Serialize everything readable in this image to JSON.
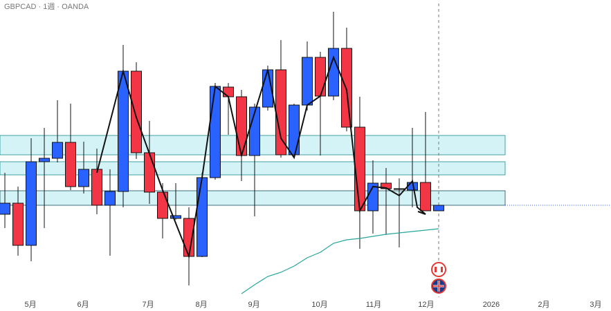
{
  "chart_data": {
    "type": "candlestick",
    "title": "GBPCAD · 1週 · OANDA",
    "up_color": "#2962ff",
    "down_color": "#f23645",
    "candles": [
      [
        140,
        200,
        120,
        156
      ],
      [
        156,
        180,
        80,
        95
      ],
      [
        95,
        250,
        72,
        216
      ],
      [
        216,
        265,
        120,
        221
      ],
      [
        221,
        305,
        215,
        244
      ],
      [
        244,
        300,
        175,
        180
      ],
      [
        180,
        245,
        170,
        205
      ],
      [
        205,
        235,
        140,
        153
      ],
      [
        153,
        205,
        80,
        173
      ],
      [
        173,
        385,
        150,
        347
      ],
      [
        347,
        360,
        220,
        229
      ],
      [
        229,
        275,
        155,
        172
      ],
      [
        172,
        185,
        105,
        134
      ],
      [
        134,
        185,
        132,
        138
      ],
      [
        134,
        150,
        37,
        79
      ],
      [
        79,
        200,
        78,
        193
      ],
      [
        193,
        330,
        190,
        325
      ],
      [
        324,
        330,
        255,
        310
      ],
      [
        310,
        320,
        188,
        225
      ],
      [
        225,
        300,
        137,
        295
      ],
      [
        295,
        355,
        290,
        349
      ],
      [
        349,
        392,
        222,
        226
      ],
      [
        226,
        300,
        222,
        298
      ],
      [
        298,
        390,
        290,
        367
      ],
      [
        367,
        375,
        225,
        311
      ],
      [
        311,
        433,
        305,
        380
      ],
      [
        380,
        410,
        260,
        266
      ],
      [
        266,
        310,
        90,
        145
      ],
      [
        145,
        218,
        112,
        185
      ],
      [
        185,
        207,
        110,
        177
      ],
      [
        177,
        192,
        92,
        176
      ],
      [
        175,
        265,
        150,
        186
      ],
      [
        186,
        288,
        145,
        145
      ],
      [
        145,
        153,
        145,
        153
      ]
    ],
    "moving_average": {
      "color": "#26a69a",
      "values": [
        null,
        null,
        null,
        null,
        null,
        null,
        null,
        null,
        null,
        null,
        null,
        null,
        null,
        null,
        null,
        null,
        null,
        null,
        25,
        38,
        50,
        56,
        65,
        77,
        85,
        98,
        103,
        105,
        108,
        111,
        113,
        115,
        117,
        119
      ]
    },
    "xlim": [
      -0.37,
      46.11
    ],
    "ylim": [
      0,
      450
    ],
    "xticks": [
      {
        "value": 1.95,
        "label": "5月"
      },
      {
        "value": 5.95,
        "label": "6月"
      },
      {
        "value": 10.9,
        "label": "7月"
      },
      {
        "value": 14.95,
        "label": "8月"
      },
      {
        "value": 18.95,
        "label": "9月"
      },
      {
        "value": 23.95,
        "label": "10月"
      },
      {
        "value": 28.05,
        "label": "11月"
      },
      {
        "value": 32.05,
        "label": "12月"
      },
      {
        "value": 37,
        "label": "2026"
      },
      {
        "value": 41,
        "label": "2月"
      },
      {
        "value": 44.95,
        "label": "3月"
      }
    ]
  }
}
